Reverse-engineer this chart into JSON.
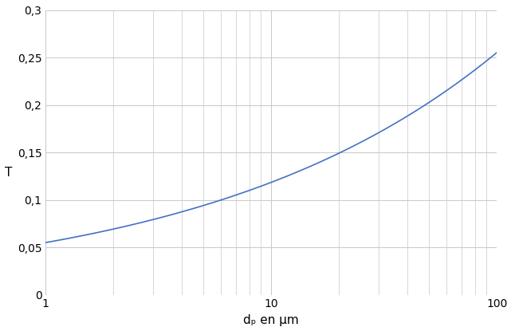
{
  "xmin": 1,
  "xmax": 100,
  "ymin": 0,
  "ymax": 0.3,
  "y_ticks": [
    0,
    0.05,
    0.1,
    0.15,
    0.2,
    0.25,
    0.3
  ],
  "y_tick_labels": [
    "0",
    "0,05",
    "0,1",
    "0,15",
    "0,2",
    "0,25",
    "0,3"
  ],
  "xlabel": "dₚ en µm",
  "ylabel": "T",
  "line_color": "#4472C4",
  "line_width": 1.2,
  "scale_factor": 0.055,
  "exponent": 0.3333333,
  "grid_color": "#C8C8C8",
  "background_color": "#FFFFFF",
  "tick_font_size": 10,
  "label_font_size": 11
}
